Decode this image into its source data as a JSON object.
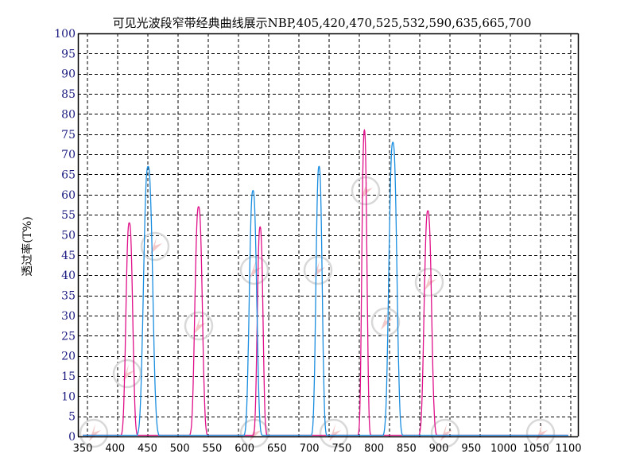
{
  "chart_data": {
    "type": "line",
    "title": "可见光波段窄带经典曲线展示NBP,405,420,470,525,532,590,635,665,700",
    "xlabel": "",
    "ylabel": "透过率(T%)",
    "xlim": [
      350,
      1100
    ],
    "ylim": [
      0,
      100
    ],
    "x_ticks": [
      350,
      400,
      450,
      500,
      550,
      600,
      650,
      700,
      750,
      800,
      850,
      900,
      950,
      1000,
      1050,
      1100
    ],
    "y_ticks": [
      0,
      5,
      10,
      15,
      20,
      25,
      30,
      35,
      40,
      45,
      50,
      55,
      60,
      65,
      70,
      75,
      80,
      85,
      90,
      95,
      100
    ],
    "grid": true,
    "legend": null,
    "series": [
      {
        "name": "magenta",
        "color": "#e0108a",
        "peaks": [
          {
            "center_nm": 422,
            "peak_T": 53,
            "fwhm_nm": 12
          },
          {
            "center_nm": 529,
            "peak_T": 57,
            "fwhm_nm": 13
          },
          {
            "center_nm": 624,
            "peak_T": 52,
            "fwhm_nm": 10
          },
          {
            "center_nm": 785,
            "peak_T": 76,
            "fwhm_nm": 9
          },
          {
            "center_nm": 883,
            "peak_T": 56,
            "fwhm_nm": 13
          }
        ]
      },
      {
        "name": "blue",
        "color": "#1a8ee0",
        "peaks": [
          {
            "center_nm": 451,
            "peak_T": 67,
            "fwhm_nm": 16
          },
          {
            "center_nm": 613,
            "peak_T": 61,
            "fwhm_nm": 13
          },
          {
            "center_nm": 715,
            "peak_T": 67,
            "fwhm_nm": 11
          },
          {
            "center_nm": 829,
            "peak_T": 73,
            "fwhm_nm": 14
          }
        ]
      }
    ]
  }
}
